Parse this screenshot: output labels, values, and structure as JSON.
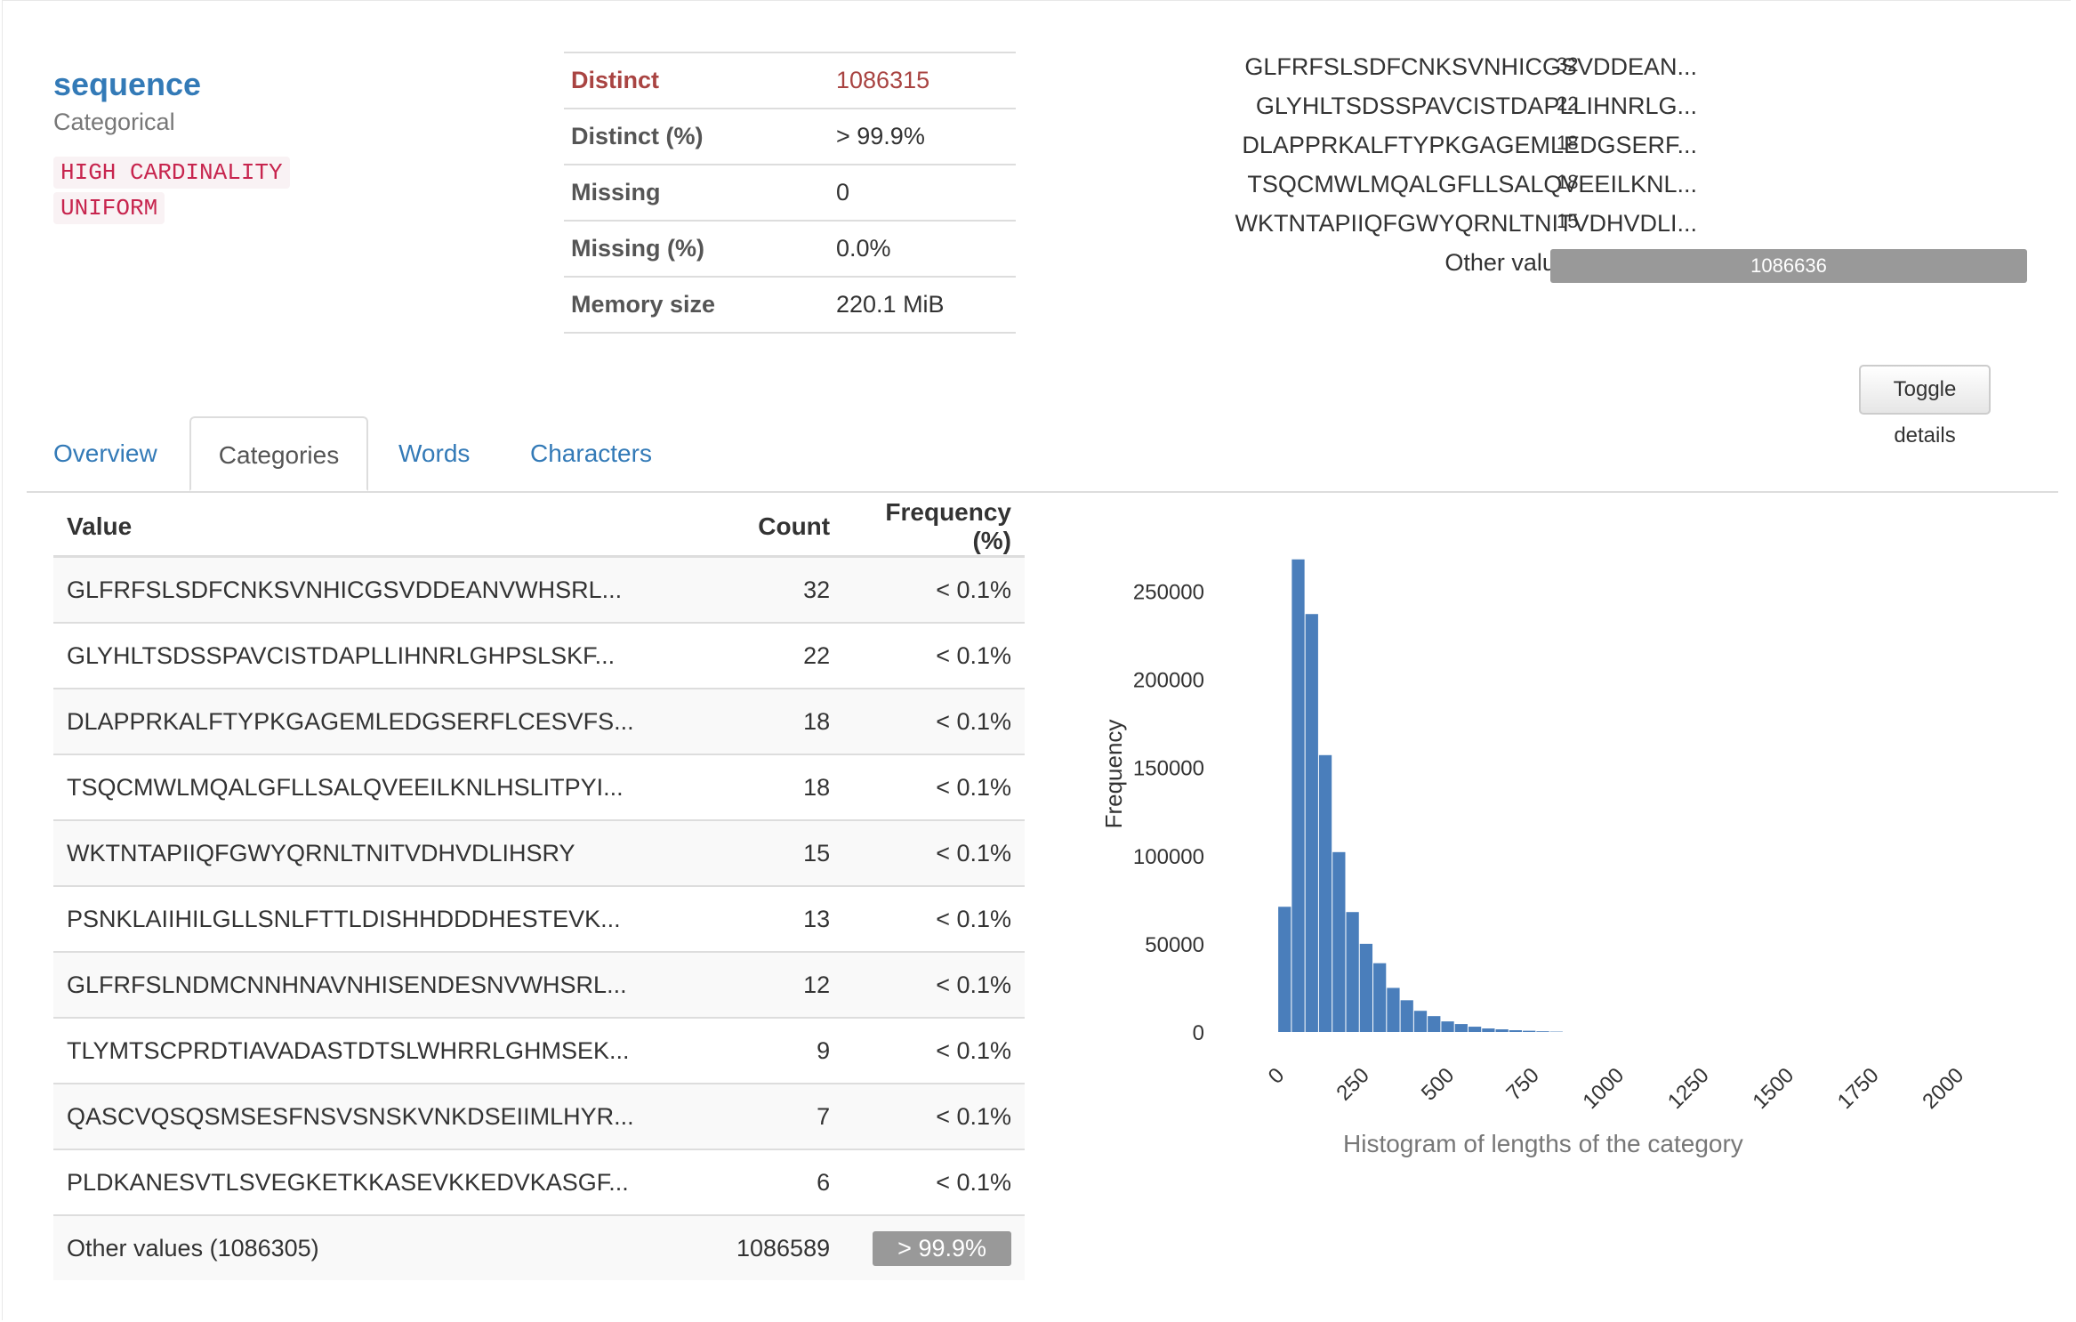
{
  "variable": {
    "name": "sequence",
    "type": "Categorical",
    "badges": [
      "HIGH CARDINALITY",
      "UNIFORM"
    ]
  },
  "stats": [
    {
      "label": "Distinct",
      "value": "1086315",
      "alert": true
    },
    {
      "label": "Distinct (%)",
      "value": "> 99.9%",
      "alert": false
    },
    {
      "label": "Missing",
      "value": "0",
      "alert": false
    },
    {
      "label": "Missing (%)",
      "value": "0.0%",
      "alert": false
    },
    {
      "label": "Memory size",
      "value": "220.1 MiB",
      "alert": false
    }
  ],
  "mini_values": [
    {
      "label": "GLFRFSLSDFCNKSVNHICGSVDDEAN...",
      "count": "32"
    },
    {
      "label": "GLYHLTSDSSPAVCISTDAPLLIHNRLG...",
      "count": "22"
    },
    {
      "label": "DLAPPRKALFTYPKGAGEMLEDGSERF...",
      "count": "18"
    },
    {
      "label": "TSQCMWLMQALGFLLSALQVEEILKNL...",
      "count": "18"
    },
    {
      "label": "WKTNTAPIIQFGWYQRNLTNITVDHVDLI...",
      "count": "15"
    }
  ],
  "mini_other": {
    "label": "Other values (1086310)",
    "count": "1086636"
  },
  "toggle_label": "Toggle details",
  "tabs": [
    {
      "label": "Overview",
      "active": false
    },
    {
      "label": "Categories",
      "active": true
    },
    {
      "label": "Words",
      "active": false
    },
    {
      "label": "Characters",
      "active": false
    }
  ],
  "table": {
    "headers": {
      "value": "Value",
      "count": "Count",
      "freq": "Frequency (%)"
    },
    "rows": [
      {
        "value": "GLFRFSLSDFCNKSVNHICGSVDDEANVWHSRL...",
        "count": "32",
        "freq": "< 0.1%"
      },
      {
        "value": "GLYHLTSDSSPAVCISTDAPLLIHNRLGHPSLSKF...",
        "count": "22",
        "freq": "< 0.1%"
      },
      {
        "value": "DLAPPRKALFTYPKGAGEMLEDGSERFLCESVFS...",
        "count": "18",
        "freq": "< 0.1%"
      },
      {
        "value": "TSQCMWLMQALGFLLSALQVEEILKNLHSLITPYI...",
        "count": "18",
        "freq": "< 0.1%"
      },
      {
        "value": "WKTNTAPIIQFGWYQRNLTNITVDHVDLIHSRY",
        "count": "15",
        "freq": "< 0.1%"
      },
      {
        "value": "PSNKLAIIHILGLLSNLFTTLDISHHDDDHESTEVK...",
        "count": "13",
        "freq": "< 0.1%"
      },
      {
        "value": "GLFRFSLNDMCNNHNAVNHISENDESNVWHSRL...",
        "count": "12",
        "freq": "< 0.1%"
      },
      {
        "value": "TLYMTSCPRDTIAVADASTDTSLWHRRLGHMSEK...",
        "count": "9",
        "freq": "< 0.1%"
      },
      {
        "value": "QASCVQSQSMSESFNSVSNSKVNKDSEIIMLHYR...",
        "count": "7",
        "freq": "< 0.1%"
      },
      {
        "value": "PLDKANESVTLSVEGKETKKASEVKKEDVKASGF...",
        "count": "6",
        "freq": "< 0.1%"
      }
    ],
    "other": {
      "value": "Other values (1086305)",
      "count": "1086589",
      "freq": "> 99.9%"
    }
  },
  "chart_data": {
    "type": "bar",
    "title": "Histogram of lengths of the category",
    "xlabel": "",
    "ylabel": "Frequency",
    "xlim": [
      -50,
      2050
    ],
    "ylim": [
      0,
      280000
    ],
    "xticks": [
      0,
      250,
      500,
      750,
      1000,
      1250,
      1500,
      1750,
      2000
    ],
    "yticks": [
      0,
      50000,
      100000,
      150000,
      200000,
      250000
    ],
    "bin_width": 40,
    "bin_starts": [
      0,
      40,
      80,
      120,
      160,
      200,
      240,
      280,
      320,
      360,
      400,
      440,
      480,
      520,
      560,
      600,
      640,
      680,
      720,
      760,
      800
    ],
    "values": [
      71000,
      268000,
      237000,
      157000,
      102000,
      68000,
      50000,
      39000,
      25000,
      18000,
      12000,
      9000,
      6000,
      4500,
      3000,
      2000,
      1500,
      1000,
      700,
      400,
      200
    ],
    "bar_color": "#4a7ebb"
  }
}
